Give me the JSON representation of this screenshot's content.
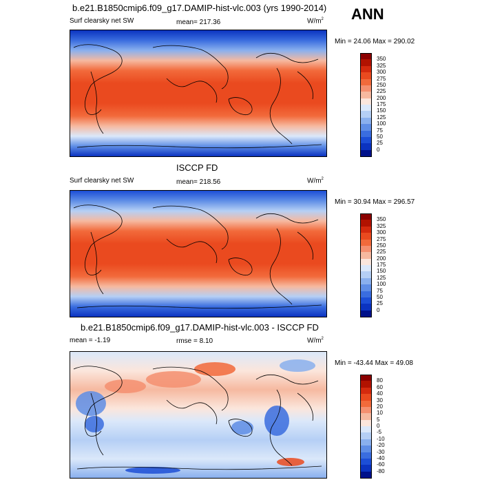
{
  "season": "ANN",
  "panels": [
    {
      "title": "b.e21.B1850cmip6.f09_g17.DAMIP-hist-vlc.003 (yrs 1990-2014)",
      "left_label": "Surf clearsky net SW",
      "center_label": "mean= 217.36",
      "units": "W/m",
      "units_sup": "2",
      "minmax": "Min =  24.06 Max = 290.02",
      "colorbar": {
        "labels": [
          "350",
          "325",
          "300",
          "275",
          "250",
          "225",
          "200",
          "175",
          "150",
          "125",
          "100",
          "75",
          "50",
          "25",
          "0"
        ],
        "colors": [
          "#8b0000",
          "#b11200",
          "#d42a0e",
          "#ea4a1f",
          "#f26a3b",
          "#f59070",
          "#f6b9a0",
          "#fbe6dc",
          "#dbe8fa",
          "#b5cff5",
          "#8ab0ee",
          "#5f8ee6",
          "#3a6ddf",
          "#1c4ed6",
          "#0b33c0",
          "#00118a"
        ]
      }
    },
    {
      "title": "ISCCP FD",
      "left_label": "Surf clearsky net SW",
      "center_label": "mean= 218.56",
      "units": "W/m",
      "units_sup": "2",
      "minmax": "Min =  30.94 Max = 296.57",
      "colorbar": {
        "labels": [
          "350",
          "325",
          "300",
          "275",
          "250",
          "225",
          "200",
          "175",
          "150",
          "125",
          "100",
          "75",
          "50",
          "25",
          "0"
        ],
        "colors": [
          "#8b0000",
          "#b11200",
          "#d42a0e",
          "#ea4a1f",
          "#f26a3b",
          "#f59070",
          "#f6b9a0",
          "#fbe6dc",
          "#dbe8fa",
          "#b5cff5",
          "#8ab0ee",
          "#5f8ee6",
          "#3a6ddf",
          "#1c4ed6",
          "#0b33c0",
          "#00118a"
        ]
      }
    },
    {
      "title": "b.e21.B1850cmip6.f09_g17.DAMIP-hist-vlc.003 - ISCCP FD",
      "left_label": "mean =  -1.19",
      "center_label": "rmse =   8.10",
      "units": "W/m",
      "units_sup": "2",
      "minmax": "Min = -43.44  Max =  49.08",
      "colorbar": {
        "labels": [
          "80",
          "60",
          "40",
          "30",
          "20",
          "10",
          "5",
          "0",
          "-5",
          "-10",
          "-20",
          "-30",
          "-40",
          "-60",
          "-80"
        ],
        "colors": [
          "#8b0000",
          "#b11200",
          "#d42a0e",
          "#ea4a1f",
          "#f26a3b",
          "#f59070",
          "#f6b9a0",
          "#fbe6dc",
          "#dbe8fa",
          "#b5cff5",
          "#8ab0ee",
          "#5f8ee6",
          "#3a6ddf",
          "#1c4ed6",
          "#0b33c0",
          "#00118a"
        ]
      }
    }
  ]
}
